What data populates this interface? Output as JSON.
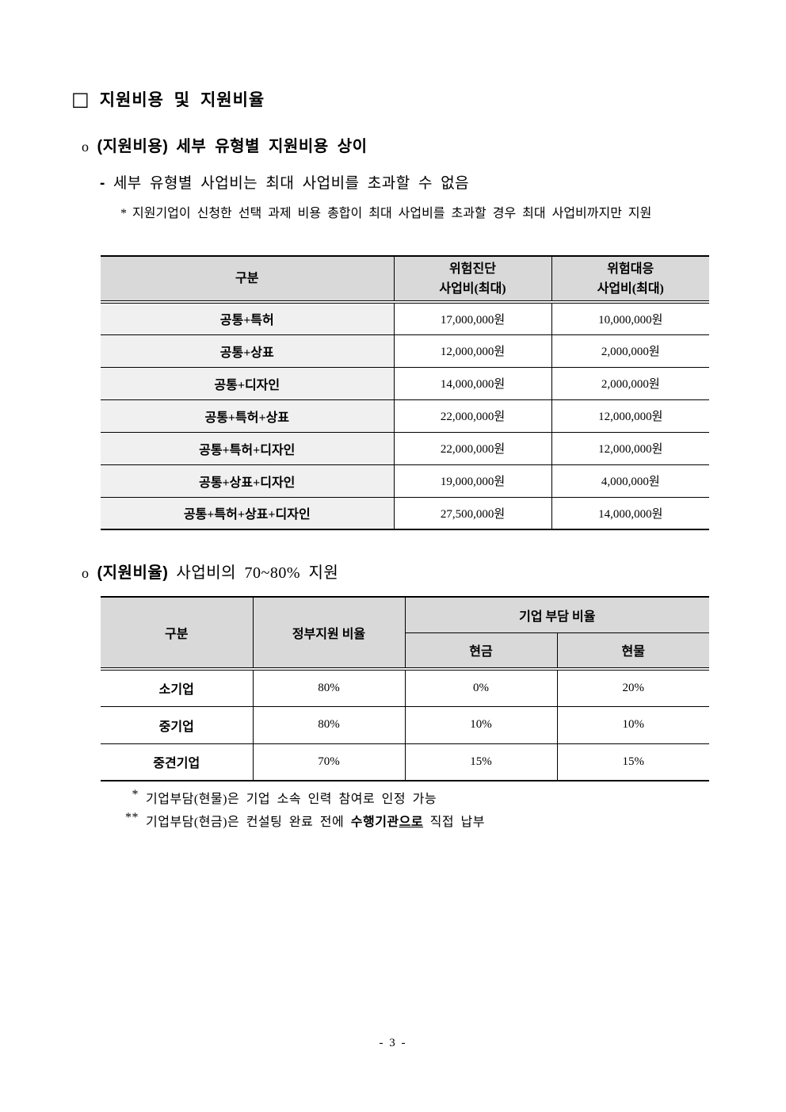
{
  "colors": {
    "table_header_bg": "#d9d9d9",
    "table_label_bg": "#f0f0f0",
    "border": "#000000"
  },
  "headings": {
    "main": {
      "marker": "□",
      "text": "지원비용 및 지원비율"
    },
    "cost": {
      "marker": "o",
      "emphasis": "(지원비용)",
      "text": "세부 유형별 지원비용 상이"
    },
    "ratio": {
      "marker": "o",
      "emphasis": "(지원비율)",
      "text": "사업비의 70~80% 지원"
    }
  },
  "cost_section": {
    "sub_marker": "-",
    "sub_text": "세부 유형별 사업비는 최대 사업비를 초과할 수 없음",
    "note_marker": "*",
    "note_text": "지원기업이 신청한 선택 과제 비용 총합이 최대 사업비를 초과할 경우 최대 사업비까지만 지원"
  },
  "cost_table": {
    "headers": {
      "category": "구분",
      "diagnosis_line1": "위험진단",
      "diagnosis_line2": "사업비(최대)",
      "response_line1": "위험대응",
      "response_line2": "사업비(최대)"
    },
    "rows": [
      {
        "category": "공통+특허",
        "diagnosis": "17,000,000원",
        "response": "10,000,000원"
      },
      {
        "category": "공통+상표",
        "diagnosis": "12,000,000원",
        "response": "2,000,000원"
      },
      {
        "category": "공통+디자인",
        "diagnosis": "14,000,000원",
        "response": "2,000,000원"
      },
      {
        "category": "공통+특허+상표",
        "diagnosis": "22,000,000원",
        "response": "12,000,000원"
      },
      {
        "category": "공통+특허+디자인",
        "diagnosis": "22,000,000원",
        "response": "12,000,000원"
      },
      {
        "category": "공통+상표+디자인",
        "diagnosis": "19,000,000원",
        "response": "4,000,000원"
      },
      {
        "category": "공통+특허+상표+디자인",
        "diagnosis": "27,500,000원",
        "response": "14,000,000원"
      }
    ]
  },
  "ratio_table": {
    "headers": {
      "category": "구분",
      "government": "정부지원 비율",
      "company_group": "기업 부담 비율",
      "cash": "현금",
      "inkind": "현물"
    },
    "rows": [
      {
        "category": "소기업",
        "government": "80%",
        "cash": "0%",
        "inkind": "20%"
      },
      {
        "category": "중기업",
        "government": "80%",
        "cash": "10%",
        "inkind": "10%"
      },
      {
        "category": "중견기업",
        "government": "70%",
        "cash": "15%",
        "inkind": "15%"
      }
    ]
  },
  "footnotes": {
    "first": {
      "marker": "*",
      "text": "기업부담(현물)은 기업 소속 인력 참여로 인정 가능"
    },
    "second": {
      "marker": "**",
      "text_before": "기업부담(현금)은 컨설팅 완료 전에 ",
      "strong": "수행기관",
      "underlined": "으로",
      "text_after": " 직접 납부"
    }
  },
  "page": {
    "number": "- 3 -"
  }
}
